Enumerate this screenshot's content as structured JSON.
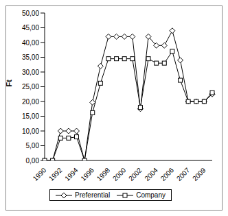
{
  "chart_data": {
    "type": "line",
    "y_label": "Ft",
    "categories": [
      "1990",
      null,
      "1992",
      null,
      "1994",
      null,
      "1996",
      null,
      "1998",
      null,
      "2000",
      null,
      "2002",
      null,
      "2004",
      null,
      "2006",
      null,
      "2007",
      null,
      "2009",
      null
    ],
    "series": [
      {
        "name": "Preferential",
        "color": "#000000",
        "marker": "diamond",
        "values": [
          0,
          0,
          10,
          10,
          10,
          0,
          19.7,
          32,
          42,
          42,
          42,
          42,
          17.5,
          42,
          39,
          39,
          44,
          34,
          20,
          20,
          20,
          22.5
        ]
      },
      {
        "name": "Company",
        "color": "#000000",
        "marker": "square",
        "values": [
          0,
          0,
          7.6,
          7.6,
          8,
          0,
          16.2,
          26.2,
          34.5,
          34.5,
          34.5,
          34.5,
          18,
          34.5,
          33,
          33,
          37,
          27.2,
          20,
          20,
          20,
          23
        ]
      }
    ],
    "ylim": [
      0,
      50
    ],
    "yticks": [
      {
        "value": 0,
        "label": "0,00"
      },
      {
        "value": 5,
        "label": "5,00"
      },
      {
        "value": 10,
        "label": "10,00"
      },
      {
        "value": 15,
        "label": "15,00"
      },
      {
        "value": 20,
        "label": "20,00"
      },
      {
        "value": 25,
        "label": "25,00"
      },
      {
        "value": 30,
        "label": "30,00"
      },
      {
        "value": 35,
        "label": "35,00"
      },
      {
        "value": 40,
        "label": "40,00"
      },
      {
        "value": 45,
        "label": "45,00"
      },
      {
        "value": 50,
        "label": "50,00"
      }
    ],
    "grid": false,
    "legend": "bottom"
  }
}
